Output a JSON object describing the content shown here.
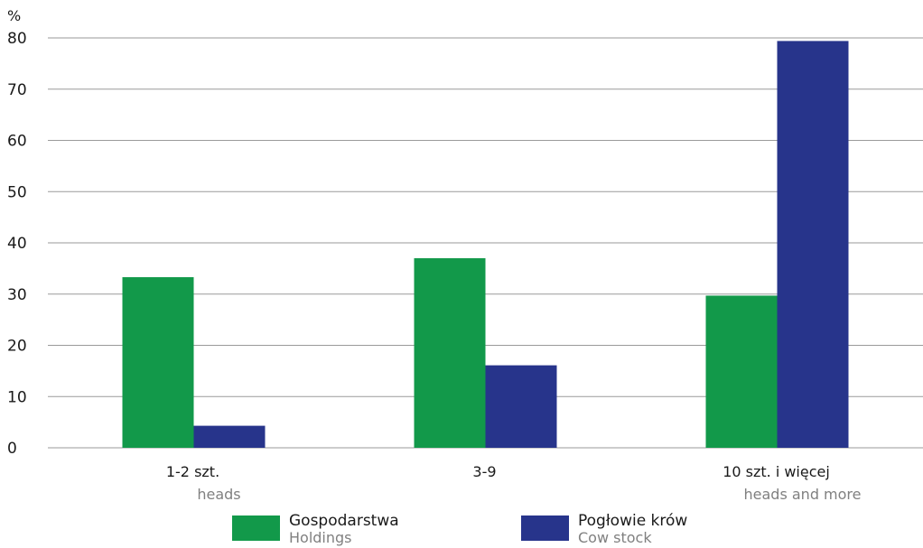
{
  "chart_data": {
    "type": "bar",
    "unit_label": "%",
    "categories": [
      {
        "label": "1-2 szt.",
        "sublabel": "heads"
      },
      {
        "label": "3-9",
        "sublabel": ""
      },
      {
        "label": "10 szt. i więcej",
        "sublabel": "heads and more"
      }
    ],
    "series": [
      {
        "name": "Gospodarstwa",
        "name_en": "Holdings",
        "color": "#12994a",
        "values": [
          33.3,
          37.0,
          29.7
        ]
      },
      {
        "name": "Pogłowie krów",
        "name_en": "Cow stock",
        "color": "#27348b",
        "values": [
          4.3,
          16.1,
          79.4
        ]
      }
    ],
    "ylim": [
      0,
      80
    ],
    "yticks": [
      "0",
      "10",
      "20",
      "30",
      "40",
      "50",
      "60",
      "70",
      "80"
    ],
    "grid": true,
    "legend_position": "bottom"
  }
}
